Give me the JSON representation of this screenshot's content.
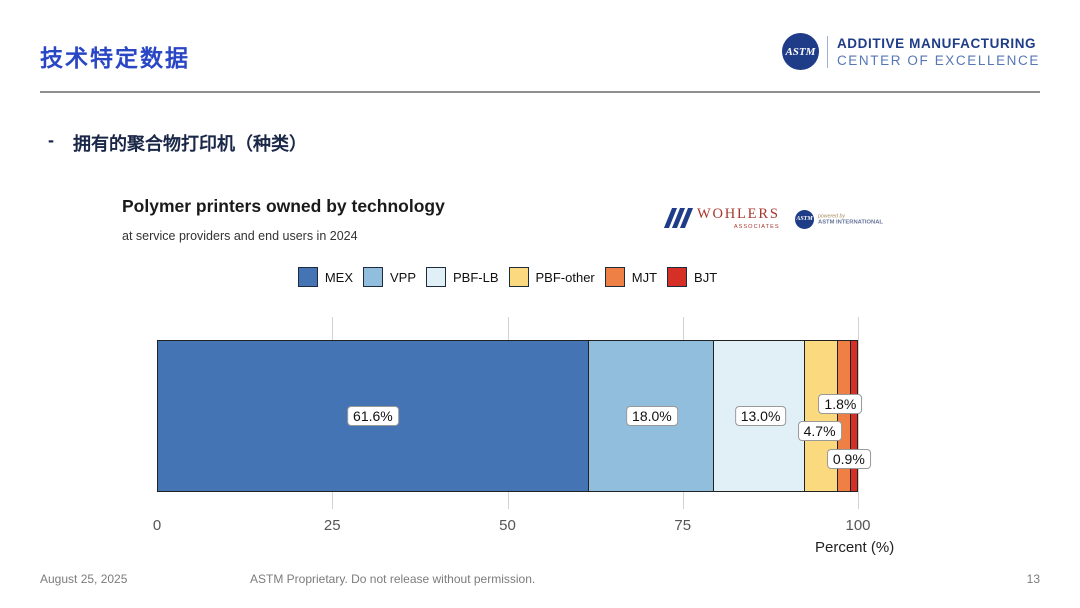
{
  "slide": {
    "title": "技术特定数据",
    "bullet_marker": "-",
    "bullet_text": "拥有的聚合物打印机（种类）",
    "footer": {
      "date": "August 25, 2025",
      "notice": "ASTM Proprietary. Do not release without permission.",
      "page": "13"
    }
  },
  "brand": {
    "logo_text": "ASTM",
    "line1": "ADDITIVE MANUFACTURING",
    "line2": "CENTER OF EXCELLENCE"
  },
  "chart": {
    "title": "Polymer printers owned by technology",
    "subtitle": "at service providers and end users in 2024",
    "wohlers_name": "WOHLERS",
    "wohlers_sub": "ASSOCIATES",
    "powered_by": "powered by",
    "powered_org": "ASTM INTERNATIONAL",
    "xlabel": "Percent (%)"
  },
  "chart_data": {
    "type": "bar",
    "orientation": "horizontal_stacked",
    "title": "Polymer printers owned by technology",
    "subtitle": "at service providers and end users in 2024",
    "categories": [
      "MEX",
      "VPP",
      "PBF-LB",
      "PBF-other",
      "MJT",
      "BJT"
    ],
    "values": [
      61.6,
      18.0,
      13.0,
      4.7,
      1.8,
      0.9
    ],
    "data_labels": [
      "61.6%",
      "18.0%",
      "13.0%",
      "4.7%",
      "1.8%",
      "0.9%"
    ],
    "colors": [
      "#4474b3",
      "#92bedd",
      "#e1eff6",
      "#fbd97f",
      "#ef8045",
      "#d62f26"
    ],
    "xlim": [
      0,
      100
    ],
    "xticks": [
      0,
      25,
      50,
      75,
      100
    ],
    "xlabel": "Percent (%)",
    "legend_position": "top",
    "grid": "vertical"
  }
}
